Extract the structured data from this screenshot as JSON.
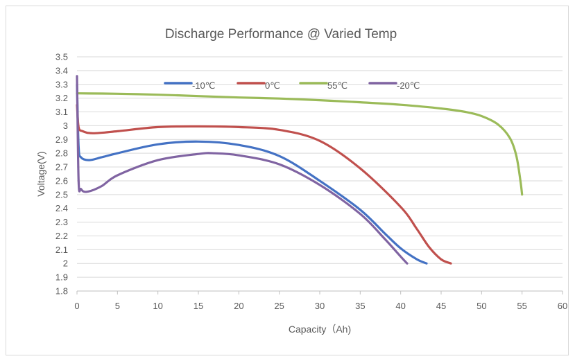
{
  "chart_data": {
    "type": "line",
    "title": "Discharge Performance @ Varied Temp",
    "xlabel": "Capacity（Ah)",
    "ylabel": "Voltage(V)",
    "xlim": [
      0,
      60
    ],
    "ylim": [
      1.8,
      3.5
    ],
    "x_ticks": [
      0,
      5,
      10,
      15,
      20,
      25,
      30,
      35,
      40,
      45,
      50,
      55,
      60
    ],
    "x_tick_labels": [
      "0",
      "5",
      "10",
      "15",
      "20",
      "25",
      "30",
      "35",
      "40",
      "45",
      "50",
      "55",
      "60"
    ],
    "y_ticks": [
      1.8,
      1.9,
      2.0,
      2.1,
      2.2,
      2.3,
      2.4,
      2.5,
      2.6,
      2.7,
      2.8,
      2.9,
      3.0,
      3.1,
      3.2,
      3.3,
      3.4,
      3.5
    ],
    "y_tick_labels": [
      "1.8",
      "1.9",
      "2",
      "2.1",
      "2.2",
      "2.3",
      "2.4",
      "2.5",
      "2.6",
      "2.7",
      "2.8",
      "2.9",
      "3",
      "3.1",
      "3.2",
      "3.3",
      "3.4",
      "3.5"
    ],
    "grid": "horizontal",
    "legend_position": "top-inside",
    "series": [
      {
        "name": "-10℃",
        "color": "#4472c4",
        "points": [
          [
            0,
            3.3
          ],
          [
            0.2,
            2.85
          ],
          [
            0.5,
            2.77
          ],
          [
            1.5,
            2.75
          ],
          [
            3,
            2.77
          ],
          [
            5,
            2.8
          ],
          [
            10,
            2.865
          ],
          [
            15,
            2.885
          ],
          [
            20,
            2.86
          ],
          [
            25,
            2.78
          ],
          [
            30,
            2.6
          ],
          [
            35,
            2.39
          ],
          [
            38,
            2.22
          ],
          [
            40,
            2.11
          ],
          [
            42,
            2.03
          ],
          [
            43.2,
            2.0
          ]
        ]
      },
      {
        "name": "0℃",
        "color": "#c0504d",
        "points": [
          [
            0,
            3.15
          ],
          [
            0.2,
            2.99
          ],
          [
            0.7,
            2.96
          ],
          [
            2,
            2.945
          ],
          [
            5,
            2.96
          ],
          [
            10,
            2.99
          ],
          [
            15,
            2.995
          ],
          [
            20,
            2.99
          ],
          [
            25,
            2.97
          ],
          [
            30,
            2.89
          ],
          [
            35,
            2.69
          ],
          [
            40,
            2.41
          ],
          [
            42,
            2.25
          ],
          [
            43.5,
            2.12
          ],
          [
            45,
            2.03
          ],
          [
            46.2,
            2.0
          ]
        ]
      },
      {
        "name": "55℃",
        "color": "#9bbb59",
        "points": [
          [
            0,
            3.235
          ],
          [
            5,
            3.232
          ],
          [
            10,
            3.225
          ],
          [
            15,
            3.215
          ],
          [
            20,
            3.205
          ],
          [
            25,
            3.197
          ],
          [
            30,
            3.185
          ],
          [
            35,
            3.17
          ],
          [
            40,
            3.152
          ],
          [
            45,
            3.125
          ],
          [
            48,
            3.1
          ],
          [
            50,
            3.07
          ],
          [
            52,
            3.01
          ],
          [
            53.5,
            2.91
          ],
          [
            54.3,
            2.78
          ],
          [
            54.8,
            2.6
          ],
          [
            55,
            2.5
          ]
        ]
      },
      {
        "name": "-20℃",
        "color": "#8064a2",
        "points": [
          [
            0,
            3.36
          ],
          [
            0.2,
            2.6
          ],
          [
            0.5,
            2.54
          ],
          [
            1.2,
            2.52
          ],
          [
            3,
            2.56
          ],
          [
            5,
            2.64
          ],
          [
            10,
            2.75
          ],
          [
            15,
            2.795
          ],
          [
            17,
            2.8
          ],
          [
            20,
            2.785
          ],
          [
            25,
            2.72
          ],
          [
            30,
            2.57
          ],
          [
            35,
            2.36
          ],
          [
            38,
            2.18
          ],
          [
            40,
            2.05
          ],
          [
            40.8,
            2.0
          ]
        ]
      }
    ]
  }
}
